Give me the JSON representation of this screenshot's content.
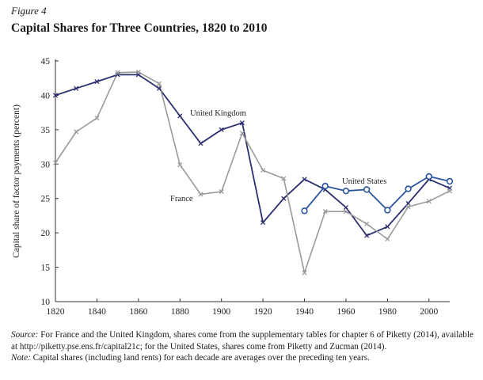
{
  "figure_label": "Figure 4",
  "figure_title": "Capital Shares for Three Countries, 1820 to 2010",
  "chart_data": {
    "type": "line",
    "title": "Capital Shares for Three Countries, 1820 to 2010",
    "xlabel": "",
    "ylabel": "Capital share of factor payments (percent)",
    "xlim": [
      1820,
      2010
    ],
    "ylim": [
      10,
      45
    ],
    "xticks": [
      1820,
      1840,
      1860,
      1880,
      1900,
      1920,
      1940,
      1960,
      1980,
      2000
    ],
    "yticks": [
      10,
      15,
      20,
      25,
      30,
      35,
      40,
      45
    ],
    "grid": false,
    "series": [
      {
        "name": "United Kingdom",
        "color": "#2a2f6e",
        "marker": "x",
        "x": [
          1820,
          1830,
          1840,
          1850,
          1860,
          1870,
          1880,
          1890,
          1900,
          1910,
          1920,
          1930,
          1940,
          1950,
          1960,
          1970,
          1980,
          1990,
          2000,
          2010
        ],
        "values": [
          40,
          41,
          42,
          43,
          43,
          41,
          37,
          33,
          35,
          36,
          21.5,
          25,
          27.8,
          26.3,
          23.7,
          19.6,
          20.9,
          24.3,
          27.8,
          26.5
        ]
      },
      {
        "name": "France",
        "color": "#9a9a9a",
        "marker": "x",
        "x": [
          1820,
          1830,
          1840,
          1850,
          1860,
          1870,
          1880,
          1890,
          1900,
          1910,
          1920,
          1930,
          1940,
          1950,
          1960,
          1970,
          1980,
          1990,
          2000,
          2010
        ],
        "values": [
          30.2,
          34.7,
          36.7,
          43.3,
          43.4,
          41.7,
          29.9,
          25.6,
          26,
          34.5,
          29.1,
          27.9,
          14.2,
          23.1,
          23.1,
          21.3,
          19.1,
          23.8,
          24.6,
          26.1
        ]
      },
      {
        "name": "United States",
        "color": "#2a54a0",
        "marker": "o",
        "x": [
          1940,
          1950,
          1960,
          1970,
          1980,
          1990,
          2000,
          2010
        ],
        "values": [
          23.2,
          26.8,
          26.1,
          26.3,
          23.3,
          26.4,
          28.2,
          27.5
        ]
      }
    ],
    "annotations": [
      {
        "text": "United Kingdom",
        "x": 1845,
        "y": 1,
        "series": 0
      },
      {
        "text": "France",
        "x": 1865,
        "y": 1,
        "series": 1
      },
      {
        "text": "United States",
        "x": 1930,
        "y": 1,
        "series": 2
      }
    ]
  },
  "notes": {
    "source_label": "Source:",
    "source_text": "For France and the United Kingdom, shares come from the supplementary tables for chapter 6 of Piketty (2014), available at http://piketty.pse.ens.fr/capital21c; for the United States, shares come from Piketty and Zucman (2014).",
    "note_label": "Note:",
    "note_text": "Capital shares (including land rents) for each decade are averages over the preceding ten years."
  }
}
